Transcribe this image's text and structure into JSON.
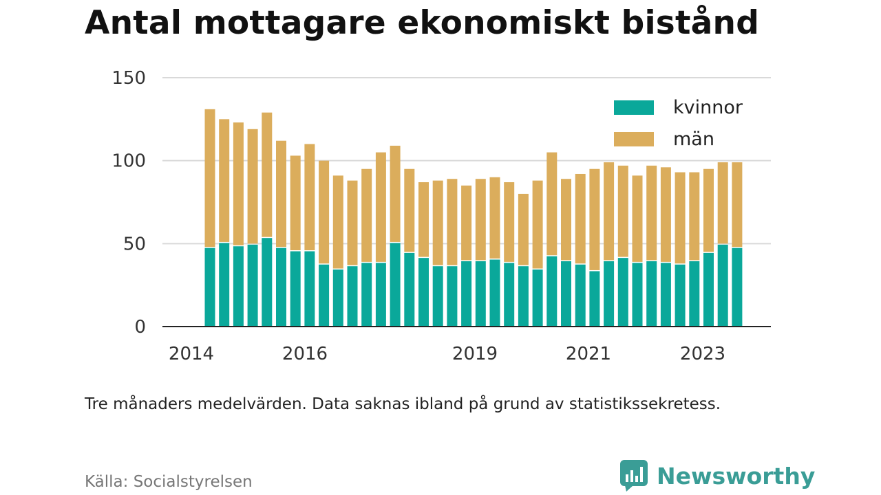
{
  "title": "Antal mottagare ekonomiskt bistånd",
  "note": "Tre månaders medelvärden. Data saknas ibland på grund av statistikssekretess.",
  "source": "Källa: Socialstyrelsen",
  "brand": {
    "name": "Newsworthy",
    "icon": "newsworthy-logo-icon",
    "color": "#3a9d96"
  },
  "chart_data": {
    "type": "bar",
    "stacked": true,
    "ylim": [
      0,
      150
    ],
    "yticks": [
      "0",
      "50",
      "100",
      "150"
    ],
    "xticks": [
      "2014",
      "2016",
      "2019",
      "2021",
      "2023"
    ],
    "grid": true,
    "legend_position": "top-right",
    "series": [
      {
        "name": "kvinnor",
        "color": "#0aa89a",
        "values": [
          48,
          51,
          49,
          50,
          54,
          48,
          46,
          46,
          38,
          35,
          37,
          39,
          39,
          51,
          45,
          42,
          37,
          37,
          40,
          40,
          41,
          39,
          37,
          35,
          43,
          40,
          38,
          34,
          40,
          42,
          39,
          40,
          39,
          38,
          40,
          45,
          50,
          48
        ]
      },
      {
        "name": "män",
        "color": "#dbad5c",
        "values": [
          83,
          74,
          74,
          69,
          75,
          64,
          57,
          64,
          62,
          56,
          51,
          56,
          66,
          58,
          50,
          45,
          51,
          52,
          45,
          49,
          49,
          48,
          43,
          53,
          62,
          49,
          54,
          61,
          59,
          55,
          52,
          57,
          57,
          55,
          53,
          50,
          49,
          51
        ]
      }
    ]
  }
}
